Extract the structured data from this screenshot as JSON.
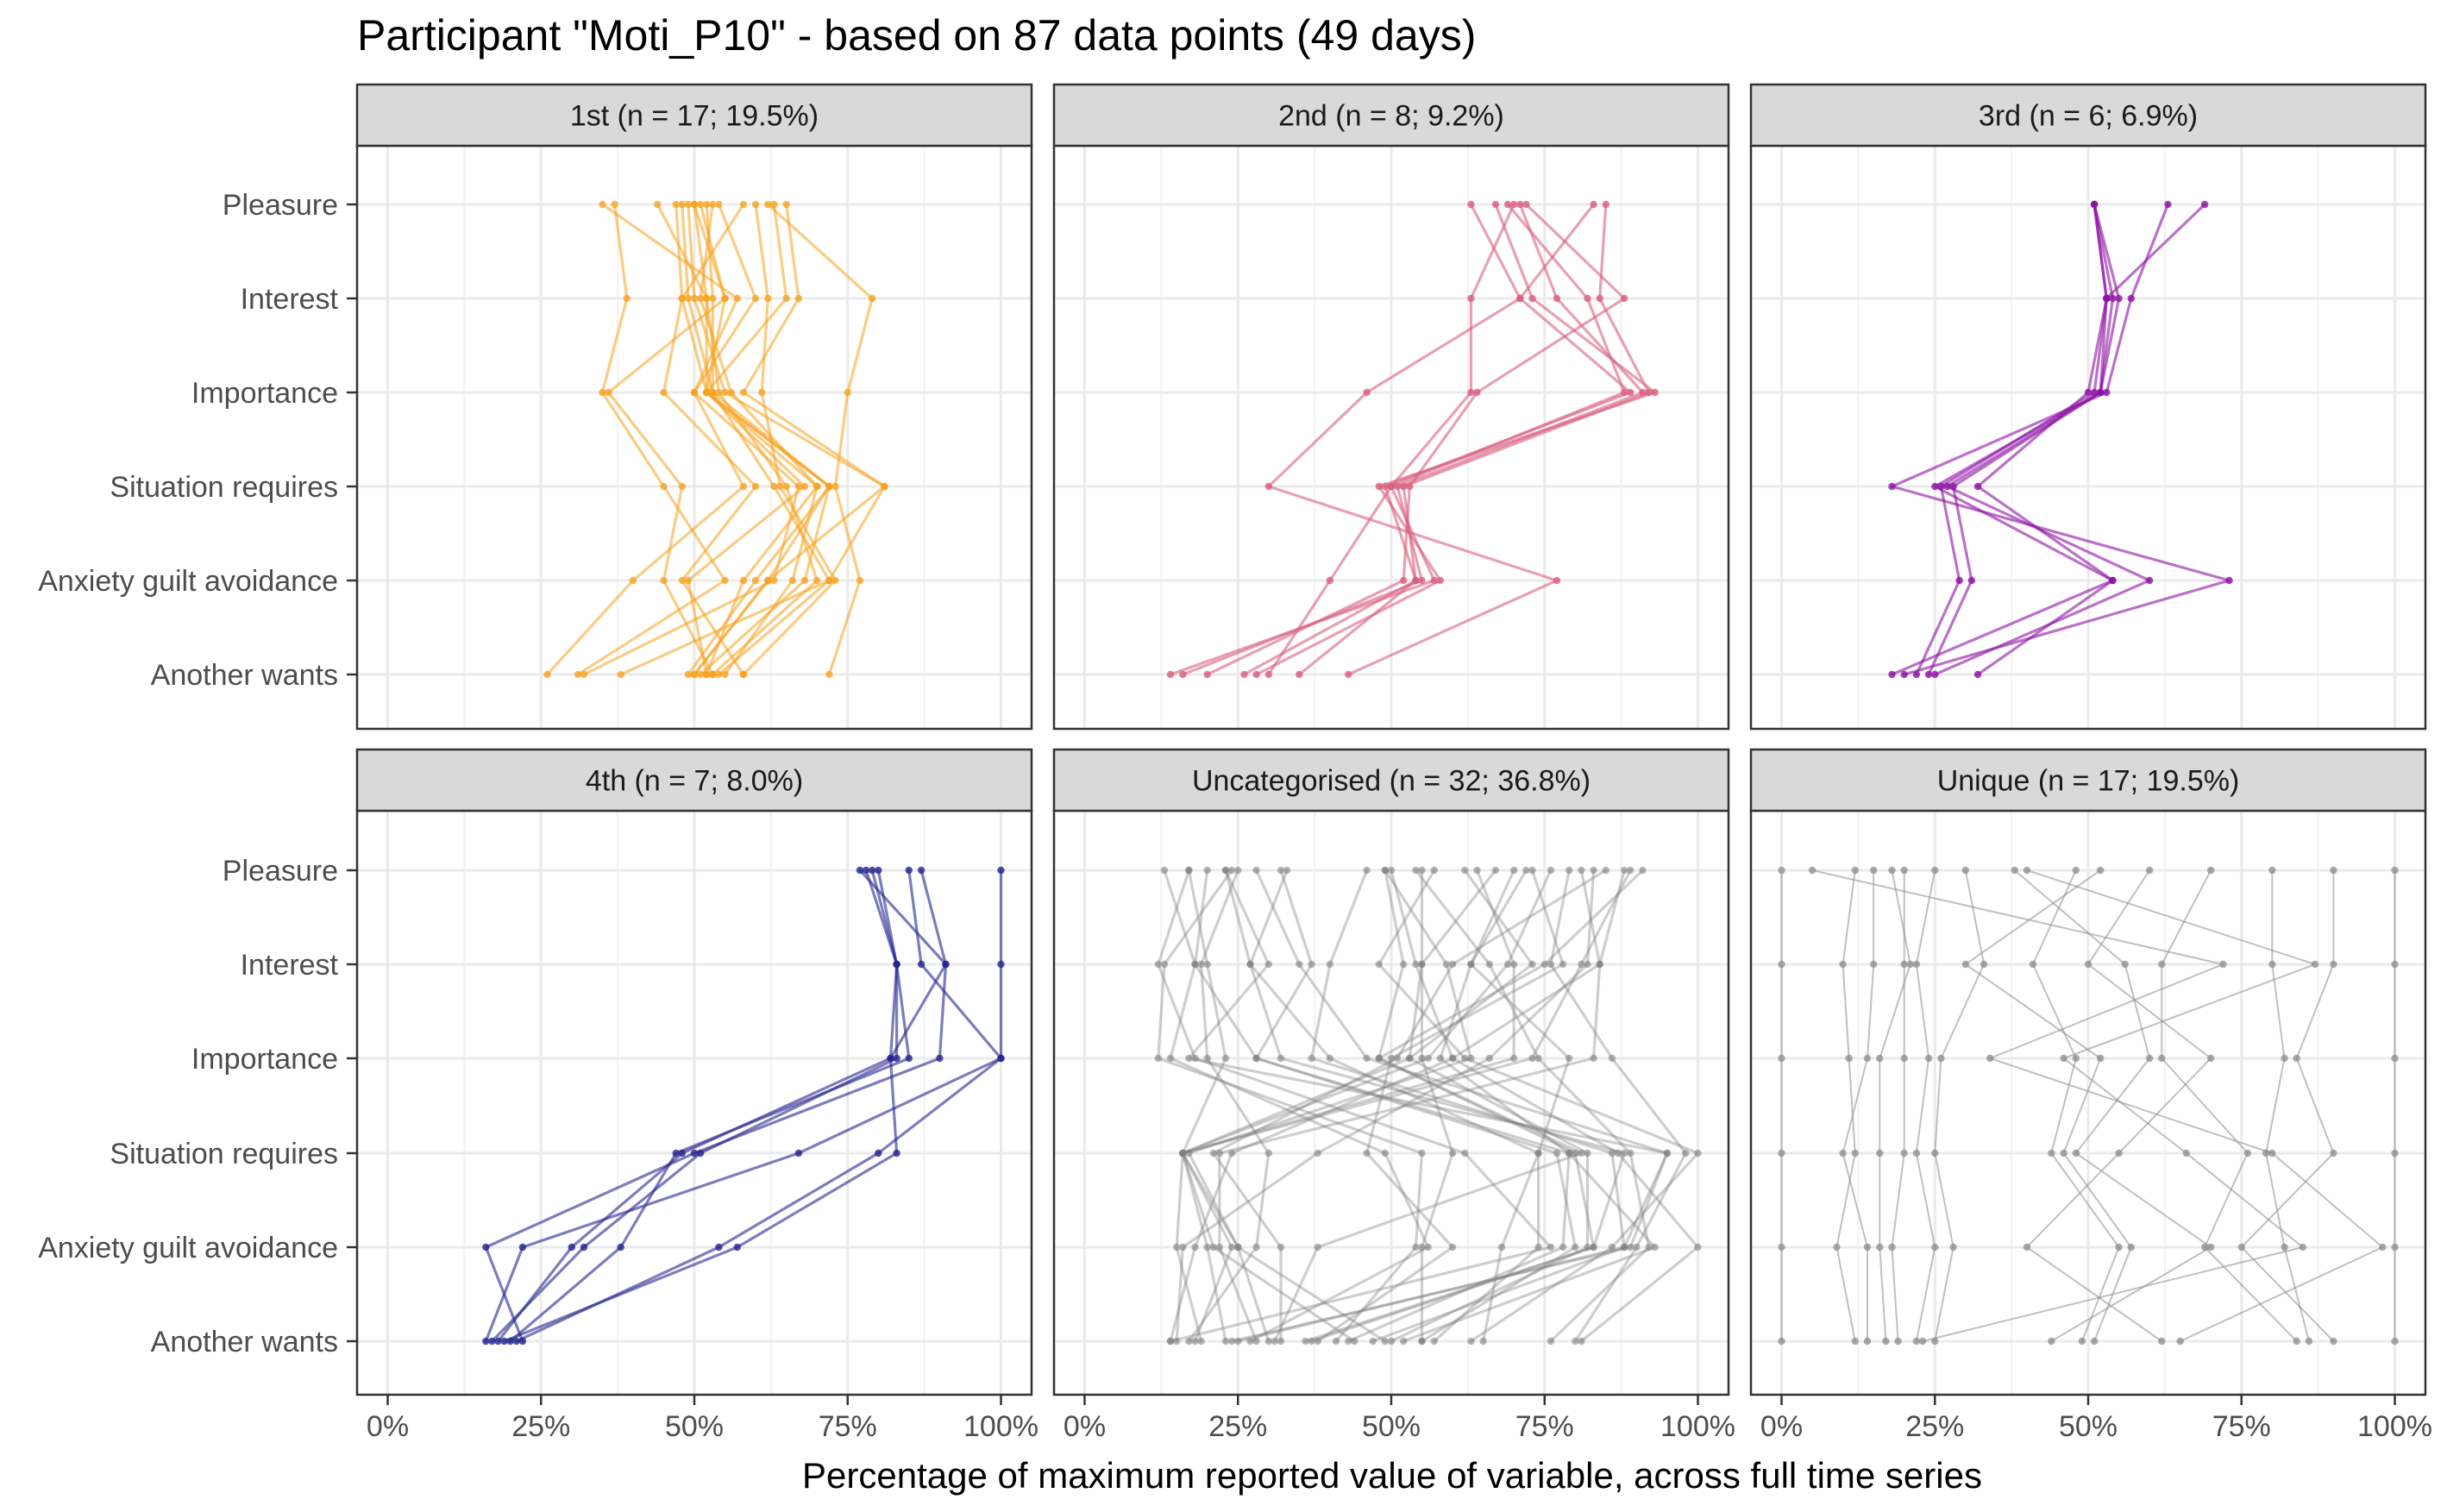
{
  "chart_data": {
    "type": "line",
    "title": "Participant \"Moti_P10\" - based on 87 data points (49 days)",
    "xlabel": "Percentage of maximum reported value of variable, across full time series",
    "ylabel": "",
    "xlim": [
      0,
      100
    ],
    "x_ticks": [
      "0%",
      "25%",
      "50%",
      "75%",
      "100%"
    ],
    "variables": [
      "Pleasure",
      "Interest",
      "Importance",
      "Situation requires",
      "Anxiety guilt avoidance",
      "Another wants"
    ],
    "grid": true,
    "panels": [
      {
        "label": "1st (n = 17; 19.5%)",
        "color": "#F5A21F",
        "series": [
          {
            "values": [
              52,
              53,
              53,
              63,
              72,
              54
            ]
          },
          {
            "values": [
              50,
              52,
              54,
              65,
              70,
              53
            ]
          },
          {
            "values": [
              51,
              55,
              52,
              72,
              68,
              51
            ]
          },
          {
            "values": [
              53,
              51,
              56,
              70,
              66,
              55
            ]
          },
          {
            "values": [
              49,
              50,
              55,
              81,
              62,
              50
            ]
          },
          {
            "values": [
              63,
              65,
              52,
              70,
              58,
              52
            ]
          },
          {
            "values": [
              37,
              39,
              35,
              45,
              55,
              31
            ]
          },
          {
            "values": [
              58,
              48,
              45,
              60,
              48,
              58
            ]
          },
          {
            "values": [
              44,
              52,
              52,
              72,
              60,
              49
            ]
          },
          {
            "values": [
              60,
              62,
              61,
              64,
              73,
              58
            ]
          },
          {
            "values": [
              65,
              67,
              58,
              81,
              72,
              38
            ]
          },
          {
            "values": [
              54,
              60,
              50,
              67,
              63,
              32
            ]
          },
          {
            "values": [
              47,
              48,
              52,
              68,
              49,
              52
            ]
          },
          {
            "values": [
              35,
              57,
              50,
              58,
              40,
              26
            ]
          },
          {
            "values": [
              48,
              49,
              53,
              72,
              62,
              50
            ]
          },
          {
            "values": [
              62,
              79,
              75,
              73,
              77,
              72
            ]
          },
          {
            "values": [
              50,
              55,
              36,
              48,
              45,
              53
            ]
          }
        ]
      },
      {
        "label": "2nd (n = 8; 9.2%)",
        "color": "#D9607F",
        "series": [
          {
            "values": [
              69,
              82,
              88,
              50,
              57,
              14
            ]
          },
          {
            "values": [
              71,
              77,
              91,
              51,
              55,
              16
            ]
          },
          {
            "values": [
              63,
              71,
              89,
              49,
              54,
              26
            ]
          },
          {
            "values": [
              67,
              73,
              93,
              48,
              58,
              28
            ]
          },
          {
            "values": [
              85,
              84,
              92,
              52,
              54,
              35
            ]
          },
          {
            "values": [
              83,
              71,
              46,
              30,
              77,
              43
            ]
          },
          {
            "values": [
              70,
              63,
              63,
              50,
              40,
              30
            ]
          },
          {
            "values": [
              72,
              88,
              64,
              53,
              52,
              20
            ]
          }
        ]
      },
      {
        "label": "3rd (n = 6; 6.9%)",
        "color": "#8E13A3",
        "series": [
          {
            "values": [
              51,
              53,
              51,
              26,
              29,
              22
            ]
          },
          {
            "values": [
              51,
              54,
              52,
              28,
              31,
              24
            ]
          },
          {
            "values": [
              51,
              53,
              50,
              32,
              54,
              32
            ]
          },
          {
            "values": [
              51,
              55,
              52,
              27,
              60,
              25
            ]
          },
          {
            "values": [
              63,
              57,
              53,
              18,
              73,
              20
            ]
          },
          {
            "values": [
              69,
              53,
              52,
              25,
              54,
              18
            ]
          }
        ]
      },
      {
        "label": "4th (n = 7; 8.0%)",
        "color": "#26268F",
        "series": [
          {
            "values": [
              78,
              83,
              82,
              48,
              30,
              18
            ]
          },
          {
            "values": [
              79,
              83,
              83,
              51,
              32,
              17
            ]
          },
          {
            "values": [
              80,
              83,
              85,
              47,
              38,
              20
            ]
          },
          {
            "values": [
              77,
              91,
              90,
              50,
              16,
              22
            ]
          },
          {
            "values": [
              85,
              87,
              100,
              67,
              22,
              16
            ]
          },
          {
            "values": [
              87,
              91,
              82,
              83,
              57,
              19
            ]
          },
          {
            "values": [
              100,
              100,
              100,
              80,
              54,
              21
            ]
          }
        ]
      },
      {
        "label": "Uncategorised (n = 32; 36.8%)",
        "color": "#7F7F7F",
        "series": [
          {
            "values": [
              62,
              73,
              53,
              16,
              25,
              49
            ]
          },
          {
            "values": [
              81,
              84,
              60,
              24,
              18,
              14
            ]
          },
          {
            "values": [
              20,
              18,
              28,
              77,
              80,
              55
            ]
          },
          {
            "values": [
              23,
              27,
              32,
              88,
              83,
              37
            ]
          },
          {
            "values": [
              28,
              35,
              46,
              95,
              88,
              25
            ]
          },
          {
            "values": [
              17,
              12,
              18,
              62,
              76,
              14
            ]
          },
          {
            "values": [
              85,
              60,
              51,
              21,
              32,
              32
            ]
          },
          {
            "values": [
              50,
              54,
              60,
              87,
              100,
              81
            ]
          },
          {
            "values": [
              54,
              66,
              74,
              89,
              92,
              76
            ]
          },
          {
            "values": [
              76,
              69,
              56,
              16,
              24,
              18
            ]
          },
          {
            "values": [
              88,
              84,
              83,
              22,
              22,
              28
            ]
          },
          {
            "values": [
              49,
              52,
              48,
              80,
              83,
              36
            ]
          },
          {
            "values": [
              23,
              30,
              17,
              95,
              89,
              24
            ]
          },
          {
            "values": [
              46,
              40,
              37,
              86,
              88,
              47
            ]
          },
          {
            "values": [
              72,
              63,
              58,
              79,
              93,
              52
            ]
          },
          {
            "values": [
              55,
              55,
              55,
              60,
              55,
              55
            ]
          },
          {
            "values": [
              79,
              76,
              86,
              98,
              90,
              80
            ]
          },
          {
            "values": [
              32,
              37,
              28,
              79,
              78,
              43
            ]
          },
          {
            "values": [
              64,
              70,
              70,
              16,
              21,
              44
            ]
          },
          {
            "values": [
              13,
              18,
              14,
              49,
              56,
              27
            ]
          },
          {
            "values": [
              89,
              81,
              73,
              16,
              20,
              23
            ]
          },
          {
            "values": [
              33,
              27,
              40,
              74,
              74,
              57
            ]
          },
          {
            "values": [
              17,
              20,
              23,
              16,
              15,
              19
            ]
          },
          {
            "values": [
              57,
              48,
              62,
              100,
              86,
              63
            ]
          },
          {
            "values": [
              73,
              78,
              50,
              46,
              60,
              38
            ]
          },
          {
            "values": [
              83,
              82,
              66,
              38,
              16,
              15
            ]
          },
          {
            "values": [
              91,
              75,
              48,
              81,
              38,
              31
            ]
          },
          {
            "values": [
              49,
              59,
              63,
              17,
              25,
              30
            ]
          },
          {
            "values": [
              25,
              19,
              20,
              30,
              28,
              17
            ]
          },
          {
            "values": [
              24,
              13,
              12,
              55,
              54,
              41
            ]
          },
          {
            "values": [
              70,
              63,
              79,
              74,
              68,
              65
            ]
          },
          {
            "values": [
              67,
              55,
              53,
              82,
              82,
              50
            ]
          }
        ]
      },
      {
        "label": "Unique (n = 17; 19.5%)",
        "color": "#8C8C8C",
        "series": [
          {
            "values": [
              0,
              0,
              0,
              0,
              0,
              0
            ]
          },
          {
            "values": [
              100,
              100,
              100,
              100,
              100,
              100
            ]
          },
          {
            "values": [
              12,
              10,
              11,
              12,
              9,
              12
            ]
          },
          {
            "values": [
              15,
              15,
              14,
              10,
              14,
              14
            ]
          },
          {
            "values": [
              18,
              21,
              16,
              16,
              16,
              17
            ]
          },
          {
            "values": [
              20,
              20,
              20,
              20,
              18,
              19
            ]
          },
          {
            "values": [
              25,
              22,
              24,
              22,
              25,
              22
            ]
          },
          {
            "values": [
              30,
              33,
              26,
              25,
              28,
              25
            ]
          },
          {
            "values": [
              48,
              41,
              48,
              44,
              55,
              49
            ]
          },
          {
            "values": [
              52,
              30,
              52,
              46,
              57,
              51
            ]
          },
          {
            "values": [
              70,
              62,
              62,
              76,
              69,
              84
            ]
          },
          {
            "values": [
              80,
              80,
              82,
              79,
              82,
              86
            ]
          },
          {
            "values": [
              90,
              90,
              84,
              90,
              75,
              90
            ]
          },
          {
            "values": [
              38,
              56,
              60,
              48,
              70,
              44
            ]
          },
          {
            "values": [
              60,
              50,
              70,
              55,
              40,
              62
            ]
          },
          {
            "values": [
              5,
              72,
              34,
              80,
              98,
              65
            ]
          },
          {
            "values": [
              40,
              87,
              46,
              66,
              85,
              23
            ]
          }
        ]
      }
    ]
  }
}
